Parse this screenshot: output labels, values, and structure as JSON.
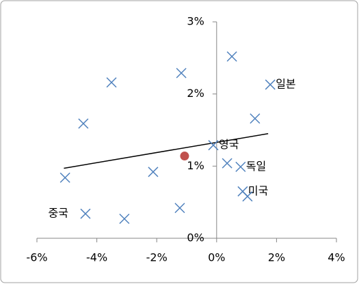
{
  "chart_data": {
    "type": "scatter",
    "series": [
      {
        "color": "#4f81bd",
        "marker": "x",
        "x": [
          -5.06,
          -4.45,
          -3.51,
          -1.18,
          0.51,
          1.79,
          1.28,
          -0.11,
          0.35,
          0.8,
          0.87,
          1.03,
          -2.12,
          -4.38,
          -3.08,
          -1.23
        ],
        "values": [
          0.84,
          1.59,
          2.16,
          2.29,
          2.52,
          2.13,
          1.66,
          1.29,
          1.04,
          0.99,
          0.65,
          0.58,
          0.92,
          0.34,
          0.27,
          0.42
        ],
        "labels": [
          null,
          null,
          null,
          null,
          null,
          "일본",
          null,
          "영국",
          null,
          "독일",
          "미국",
          null,
          null,
          "중국",
          null,
          null
        ]
      },
      {
        "color": "#c0504d",
        "marker": "circle",
        "x": [
          -1.07
        ],
        "values": [
          1.14
        ]
      }
    ],
    "trendline": {
      "color": "#000000",
      "x": [
        -5.1,
        1.72
      ],
      "values": [
        0.97,
        1.45
      ]
    },
    "xlim": [
      -6,
      4
    ],
    "xticks": [
      {
        "value": -6,
        "label": "-6%"
      },
      {
        "value": -4,
        "label": "-4%"
      },
      {
        "value": -2,
        "label": "-2%"
      },
      {
        "value": 0,
        "label": "0%"
      },
      {
        "value": 2,
        "label": "2%"
      },
      {
        "value": 4,
        "label": "4%"
      }
    ],
    "ylim": [
      0,
      3
    ],
    "yticks": [
      {
        "value": 0,
        "label": "0%"
      },
      {
        "value": 1,
        "label": "1%"
      },
      {
        "value": 2,
        "label": "2%"
      },
      {
        "value": 3,
        "label": "3%"
      }
    ]
  }
}
